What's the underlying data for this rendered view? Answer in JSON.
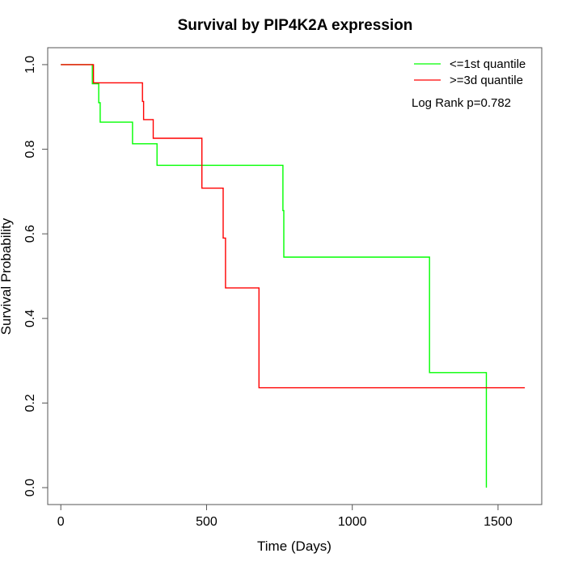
{
  "chart_data": {
    "type": "line",
    "title": "Survival by PIP4K2A expression",
    "xlabel": "Time (Days)",
    "ylabel": "Survival Probability",
    "xlim": [
      -45,
      1650
    ],
    "ylim": [
      -0.04,
      1.04
    ],
    "xticks": [
      0,
      500,
      1000,
      1500
    ],
    "yticks": [
      0.0,
      0.2,
      0.4,
      0.6,
      0.8,
      1.0
    ],
    "ytick_labels": [
      "0.0",
      "0.2",
      "0.4",
      "0.6",
      "0.8",
      "1.0"
    ],
    "grid": false,
    "legend_position": "top-right",
    "annotation": "Log Rank p=0.782",
    "series": [
      {
        "name": "<=1st quantile",
        "color": "#00ff00",
        "x": [
          0,
          108,
          108,
          130,
          130,
          135,
          135,
          246,
          246,
          330,
          330,
          762,
          762,
          765,
          765,
          1265,
          1265,
          1460,
          1460
        ],
        "y": [
          1.0,
          1.0,
          0.955,
          0.955,
          0.91,
          0.91,
          0.864,
          0.864,
          0.813,
          0.813,
          0.762,
          0.762,
          0.655,
          0.655,
          0.545,
          0.545,
          0.272,
          0.272,
          0.0
        ]
      },
      {
        "name": ">=3d quantile",
        "color": "#ff0000",
        "x": [
          0,
          112,
          112,
          280,
          280,
          284,
          284,
          317,
          317,
          484,
          484,
          557,
          557,
          565,
          565,
          680,
          680,
          1592
        ],
        "y": [
          1.0,
          1.0,
          0.957,
          0.957,
          0.913,
          0.913,
          0.87,
          0.87,
          0.826,
          0.826,
          0.708,
          0.708,
          0.59,
          0.59,
          0.472,
          0.472,
          0.236,
          0.236
        ]
      }
    ]
  }
}
